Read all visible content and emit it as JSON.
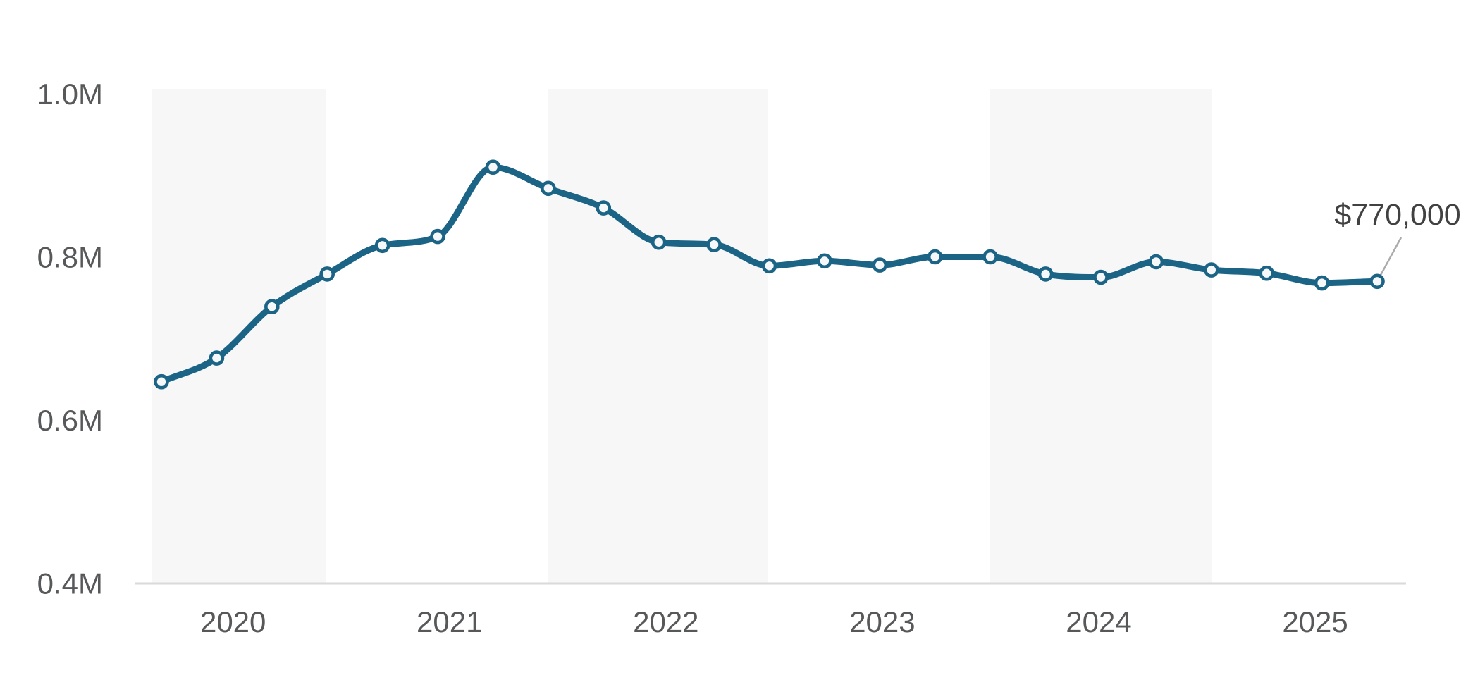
{
  "chart_data": {
    "type": "line",
    "description": "Median sale price over time, quarterly points with smoothed line and circular markers",
    "ylim": [
      400000,
      1000000
    ],
    "grid": "alternating light-gray vertical year bands (2020, 2022, 2024 shaded)",
    "legend_position": "none",
    "y_axis": {
      "ticks": [
        {
          "label": "1.0M",
          "value": 1000000
        },
        {
          "label": "0.8M",
          "value": 800000
        },
        {
          "label": "0.6M",
          "value": 600000
        },
        {
          "label": "0.4M",
          "value": 400000
        }
      ]
    },
    "x_axis": {
      "ticks": [
        "2020",
        "2021",
        "2022",
        "2023",
        "2024",
        "2025"
      ]
    },
    "series": [
      {
        "name": "median-sale-price",
        "points": [
          {
            "period": "2020 Q1",
            "value": 647000
          },
          {
            "period": "2020 Q2",
            "value": 676000
          },
          {
            "period": "2020 Q3",
            "value": 739000
          },
          {
            "period": "2020 Q4",
            "value": 779000
          },
          {
            "period": "2021 Q1",
            "value": 814000
          },
          {
            "period": "2021 Q2",
            "value": 825000
          },
          {
            "period": "2021 Q3",
            "value": 910000
          },
          {
            "period": "2021 Q4",
            "value": 884000
          },
          {
            "period": "2022 Q1",
            "value": 860000
          },
          {
            "period": "2022 Q2",
            "value": 818000
          },
          {
            "period": "2022 Q3",
            "value": 815000
          },
          {
            "period": "2022 Q4",
            "value": 789000
          },
          {
            "period": "2023 Q1",
            "value": 795000
          },
          {
            "period": "2023 Q2",
            "value": 790000
          },
          {
            "period": "2023 Q3",
            "value": 800000
          },
          {
            "period": "2023 Q4",
            "value": 800000
          },
          {
            "period": "2024 Q1",
            "value": 779000
          },
          {
            "period": "2024 Q2",
            "value": 775000
          },
          {
            "period": "2024 Q3",
            "value": 794000
          },
          {
            "period": "2024 Q4",
            "value": 784000
          },
          {
            "period": "2025 Q1",
            "value": 780000
          },
          {
            "period": "2025 Q2",
            "value": 768000
          },
          {
            "period": "2025 Q3",
            "value": 770000
          }
        ]
      }
    ],
    "annotation": {
      "text": "$770,000",
      "value": 770000,
      "attached_to_period": "2025 Q3"
    }
  },
  "colors": {
    "line": "#1b6486",
    "marker_fill": "#f6f7f8",
    "marker_stroke": "#1b6486",
    "year_band": "#f7f7f8",
    "axis_line": "#dadada",
    "tick_text": "#57585a",
    "annotation_text": "#414141",
    "leader_line": "#ababab",
    "background": "#ffffff"
  }
}
